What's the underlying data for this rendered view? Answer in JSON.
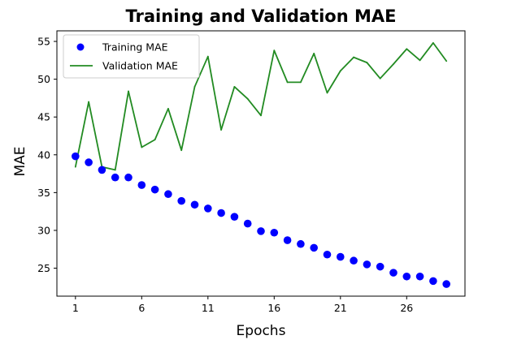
{
  "chart_data": {
    "type": "line",
    "title": "Training and Validation MAE",
    "xlabel": "Epochs",
    "ylabel": "MAE",
    "xlim": [
      -0.4,
      30.4
    ],
    "ylim": [
      21.3,
      56.4
    ],
    "xticks": [
      1,
      6,
      11,
      16,
      21,
      26
    ],
    "yticks": [
      25,
      30,
      35,
      40,
      45,
      50,
      55
    ],
    "grid": false,
    "legend_position": "top-left",
    "colors": {
      "training": "#0000ff",
      "validation": "#228b22",
      "axis": "#000000"
    },
    "series": [
      {
        "name": "Training MAE",
        "style": "dots",
        "x": [
          1,
          2,
          3,
          4,
          5,
          6,
          7,
          8,
          9,
          10,
          11,
          12,
          13,
          14,
          15,
          16,
          17,
          18,
          19,
          20,
          21,
          22,
          23,
          24,
          25,
          26,
          27,
          28,
          29
        ],
        "values": [
          39.8,
          39.0,
          38.0,
          37.0,
          37.0,
          36.0,
          35.4,
          34.8,
          33.9,
          33.4,
          32.9,
          32.3,
          31.8,
          30.9,
          29.9,
          29.7,
          28.7,
          28.2,
          27.7,
          26.8,
          26.5,
          26.0,
          25.5,
          25.2,
          24.4,
          23.9,
          23.9,
          23.3,
          22.9
        ]
      },
      {
        "name": "Validation MAE",
        "style": "line",
        "x": [
          1,
          2,
          3,
          4,
          5,
          6,
          7,
          8,
          9,
          10,
          11,
          12,
          13,
          14,
          15,
          16,
          17,
          18,
          19,
          20,
          21,
          22,
          23,
          24,
          25,
          26,
          27,
          28,
          29
        ],
        "values": [
          38.4,
          47.0,
          38.4,
          38.0,
          48.4,
          41.0,
          42.0,
          46.1,
          40.6,
          49.0,
          53.0,
          43.3,
          49.0,
          47.4,
          45.2,
          53.8,
          49.6,
          49.6,
          53.4,
          48.2,
          51.1,
          52.9,
          52.2,
          50.1,
          52.0,
          54.0,
          52.5,
          54.8,
          52.4
        ]
      }
    ]
  }
}
